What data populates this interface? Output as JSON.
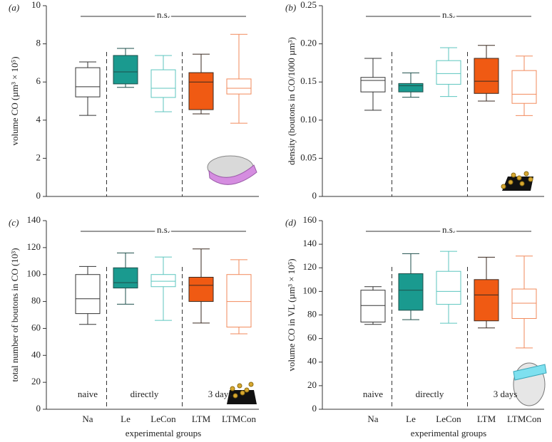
{
  "chart_data": [
    {
      "type": "box",
      "panel_label": "(a)",
      "annotation": "n.s.",
      "ylabel": "volume CO (µm³ × 10⁵)",
      "categories": [
        null,
        null,
        null,
        null,
        null
      ],
      "whisker_high": [
        7.05,
        7.76,
        7.39,
        7.46,
        8.5
      ],
      "q3": [
        6.75,
        7.39,
        6.64,
        6.49,
        6.16
      ],
      "median": [
        5.75,
        6.53,
        5.67,
        6.0,
        5.67
      ],
      "q1": [
        5.22,
        5.9,
        5.19,
        4.55,
        5.37
      ],
      "whisker_low": [
        4.25,
        5.72,
        4.44,
        4.33,
        3.84
      ],
      "colors": [
        "#333333",
        "#1e4f4b",
        "#5cc6bf",
        "#3a2a20",
        "#f28a5b"
      ],
      "fills": [
        "#ffffff",
        "#1a9a8f",
        "#ffffff",
        "#f05a13",
        "#ffffff"
      ],
      "ylim": [
        0,
        10
      ],
      "yticks": [
        0,
        2,
        4,
        6,
        8,
        10
      ]
    },
    {
      "type": "box",
      "panel_label": "(b)",
      "annotation": "n.s.",
      "ylabel": "density (boutons in CO/1000 µm³)",
      "categories": [
        null,
        null,
        null,
        null,
        null
      ],
      "whisker_high": [
        0.181,
        0.162,
        0.195,
        0.198,
        0.184
      ],
      "q3": [
        0.156,
        0.148,
        0.178,
        0.181,
        0.165
      ],
      "median": [
        0.152,
        0.145,
        0.161,
        0.151,
        0.134
      ],
      "q1": [
        0.137,
        0.137,
        0.147,
        0.135,
        0.122
      ],
      "whisker_low": [
        0.113,
        0.13,
        0.131,
        0.125,
        0.106
      ],
      "colors": [
        "#333333",
        "#1e4f4b",
        "#5cc6bf",
        "#3a2a20",
        "#f28a5b"
      ],
      "fills": [
        "#ffffff",
        "#1a9a8f",
        "#ffffff",
        "#f05a13",
        "#ffffff"
      ],
      "ylim": [
        0,
        0.25
      ],
      "yticks": [
        0,
        0.05,
        {
          "value": 0.1,
          "label": "0.10"
        },
        0.15,
        {
          "value": 0.2,
          "label": "0.20"
        },
        0.25
      ]
    },
    {
      "type": "box",
      "panel_label": "(c)",
      "annotation": "n.s.",
      "ylabel": "total number of boutons in CO (10³)",
      "xlabel": "experimental groups",
      "group_labels": [
        "naive",
        "directly",
        "3 days"
      ],
      "categories": [
        "Na",
        "Le",
        "LeCon",
        "LTM",
        "LTMCon"
      ],
      "whisker_high": [
        106,
        116,
        113,
        119,
        111
      ],
      "q3": [
        100,
        105,
        100,
        98,
        100
      ],
      "median": [
        82,
        94,
        95,
        92,
        80
      ],
      "q1": [
        71,
        90,
        91,
        80,
        61
      ],
      "whisker_low": [
        63,
        78,
        66,
        64,
        56
      ],
      "colors": [
        "#333333",
        "#1e4f4b",
        "#5cc6bf",
        "#3a2a20",
        "#f28a5b"
      ],
      "fills": [
        "#ffffff",
        "#1a9a8f",
        "#ffffff",
        "#f05a13",
        "#ffffff"
      ],
      "ylim": [
        0,
        140
      ],
      "yticks": [
        0,
        20,
        40,
        60,
        80,
        100,
        120,
        140
      ]
    },
    {
      "type": "box",
      "panel_label": "(d)",
      "annotation": "n.s.",
      "ylabel": "volume CO in VL (µm³ × 10⁵)",
      "xlabel": "experimental groups",
      "group_labels": [
        "naive",
        "directly",
        "3 days"
      ],
      "categories": [
        "Na",
        "Le",
        "LeCon",
        "LTM",
        "LTMCon"
      ],
      "whisker_high": [
        104,
        132,
        134,
        129,
        130
      ],
      "q3": [
        101,
        115,
        117,
        110,
        102
      ],
      "median": [
        88,
        101,
        100,
        97,
        90
      ],
      "q1": [
        74,
        84,
        89,
        75,
        77
      ],
      "whisker_low": [
        72,
        76,
        73,
        69,
        52
      ],
      "colors": [
        "#333333",
        "#1e4f4b",
        "#5cc6bf",
        "#3a2a20",
        "#f28a5b"
      ],
      "fills": [
        "#ffffff",
        "#1a9a8f",
        "#ffffff",
        "#f05a13",
        "#ffffff"
      ],
      "ylim": [
        0,
        160
      ],
      "yticks": [
        0,
        20,
        40,
        60,
        80,
        100,
        120,
        140,
        160
      ]
    }
  ]
}
